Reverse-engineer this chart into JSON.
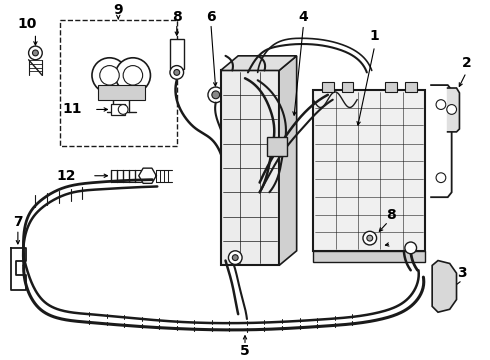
{
  "bg_color": "#ffffff",
  "lc": "#1a1a1a",
  "label_fontsize": 10,
  "fig_width": 4.9,
  "fig_height": 3.6,
  "dpi": 100
}
